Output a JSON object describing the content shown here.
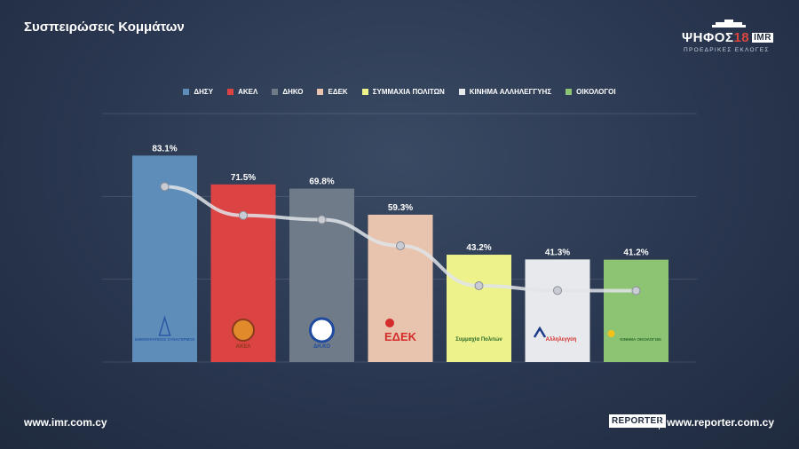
{
  "header": {
    "title": "Συσπειρώσεις Κομμάτων",
    "logo_main": "ΨΗΦΟΣ",
    "logo_num": "18",
    "logo_badge": "IMR",
    "logo_sub": "ΠΡΟΕΔΡΙΚΕΣ ΕΚΛΟΓΕΣ"
  },
  "footer": {
    "left": "www.imr.com.cy",
    "reporter_logo": "REPORTER",
    "right": "www.reporter.com.cy"
  },
  "party_logos": [
    {
      "name": "disy-logo",
      "text": "ΔΗΜΟΚΡΑΤΙΚΟΣ ΣΥΝΑΓΕΡΜΟΣ"
    },
    {
      "name": "akel-logo",
      "text": "ΑΚΕΛ"
    },
    {
      "name": "diko-logo",
      "text": "ΔΗ.ΚΟ"
    },
    {
      "name": "edek-logo",
      "text": "ΕΔΕΚ"
    },
    {
      "name": "symmaxia-logo",
      "text": "Συμμαχία Πολιτών"
    },
    {
      "name": "allilegyi-logo",
      "text": "Αλληλεγγύη"
    },
    {
      "name": "oikologoi-logo",
      "text": "ΚΙΝΗΜΑ ΟΙΚΟΛΟΓΩΝ"
    }
  ],
  "chart_data": {
    "type": "bar",
    "title": "Συσπειρώσεις Κομμάτων",
    "categories": [
      "ΔΗΣΥ",
      "ΑΚΕΛ",
      "ΔΗΚΟ",
      "ΕΔΕΚ",
      "ΣΥΜΜΑΧΙΑ ΠΟΛΙΤΩΝ",
      "ΚΙΝΗΜΑ ΑΛΛΗΛΕΓΓΥΗΣ",
      "ΟΙΚΟΛΟΓΟΙ"
    ],
    "values": [
      83.1,
      71.5,
      69.8,
      59.3,
      43.2,
      41.3,
      41.2
    ],
    "value_labels": [
      "83.1%",
      "71.5%",
      "69.8%",
      "59.3%",
      "43.2%",
      "41.3%",
      "41.2%"
    ],
    "colors": [
      "#5d8db8",
      "#dc4343",
      "#6f7b88",
      "#e8c3ae",
      "#eef28a",
      "#e8e9ec",
      "#8cc474"
    ],
    "legend_position": "top",
    "grid": true,
    "ylim": [
      0,
      100
    ],
    "trend_line": true
  }
}
